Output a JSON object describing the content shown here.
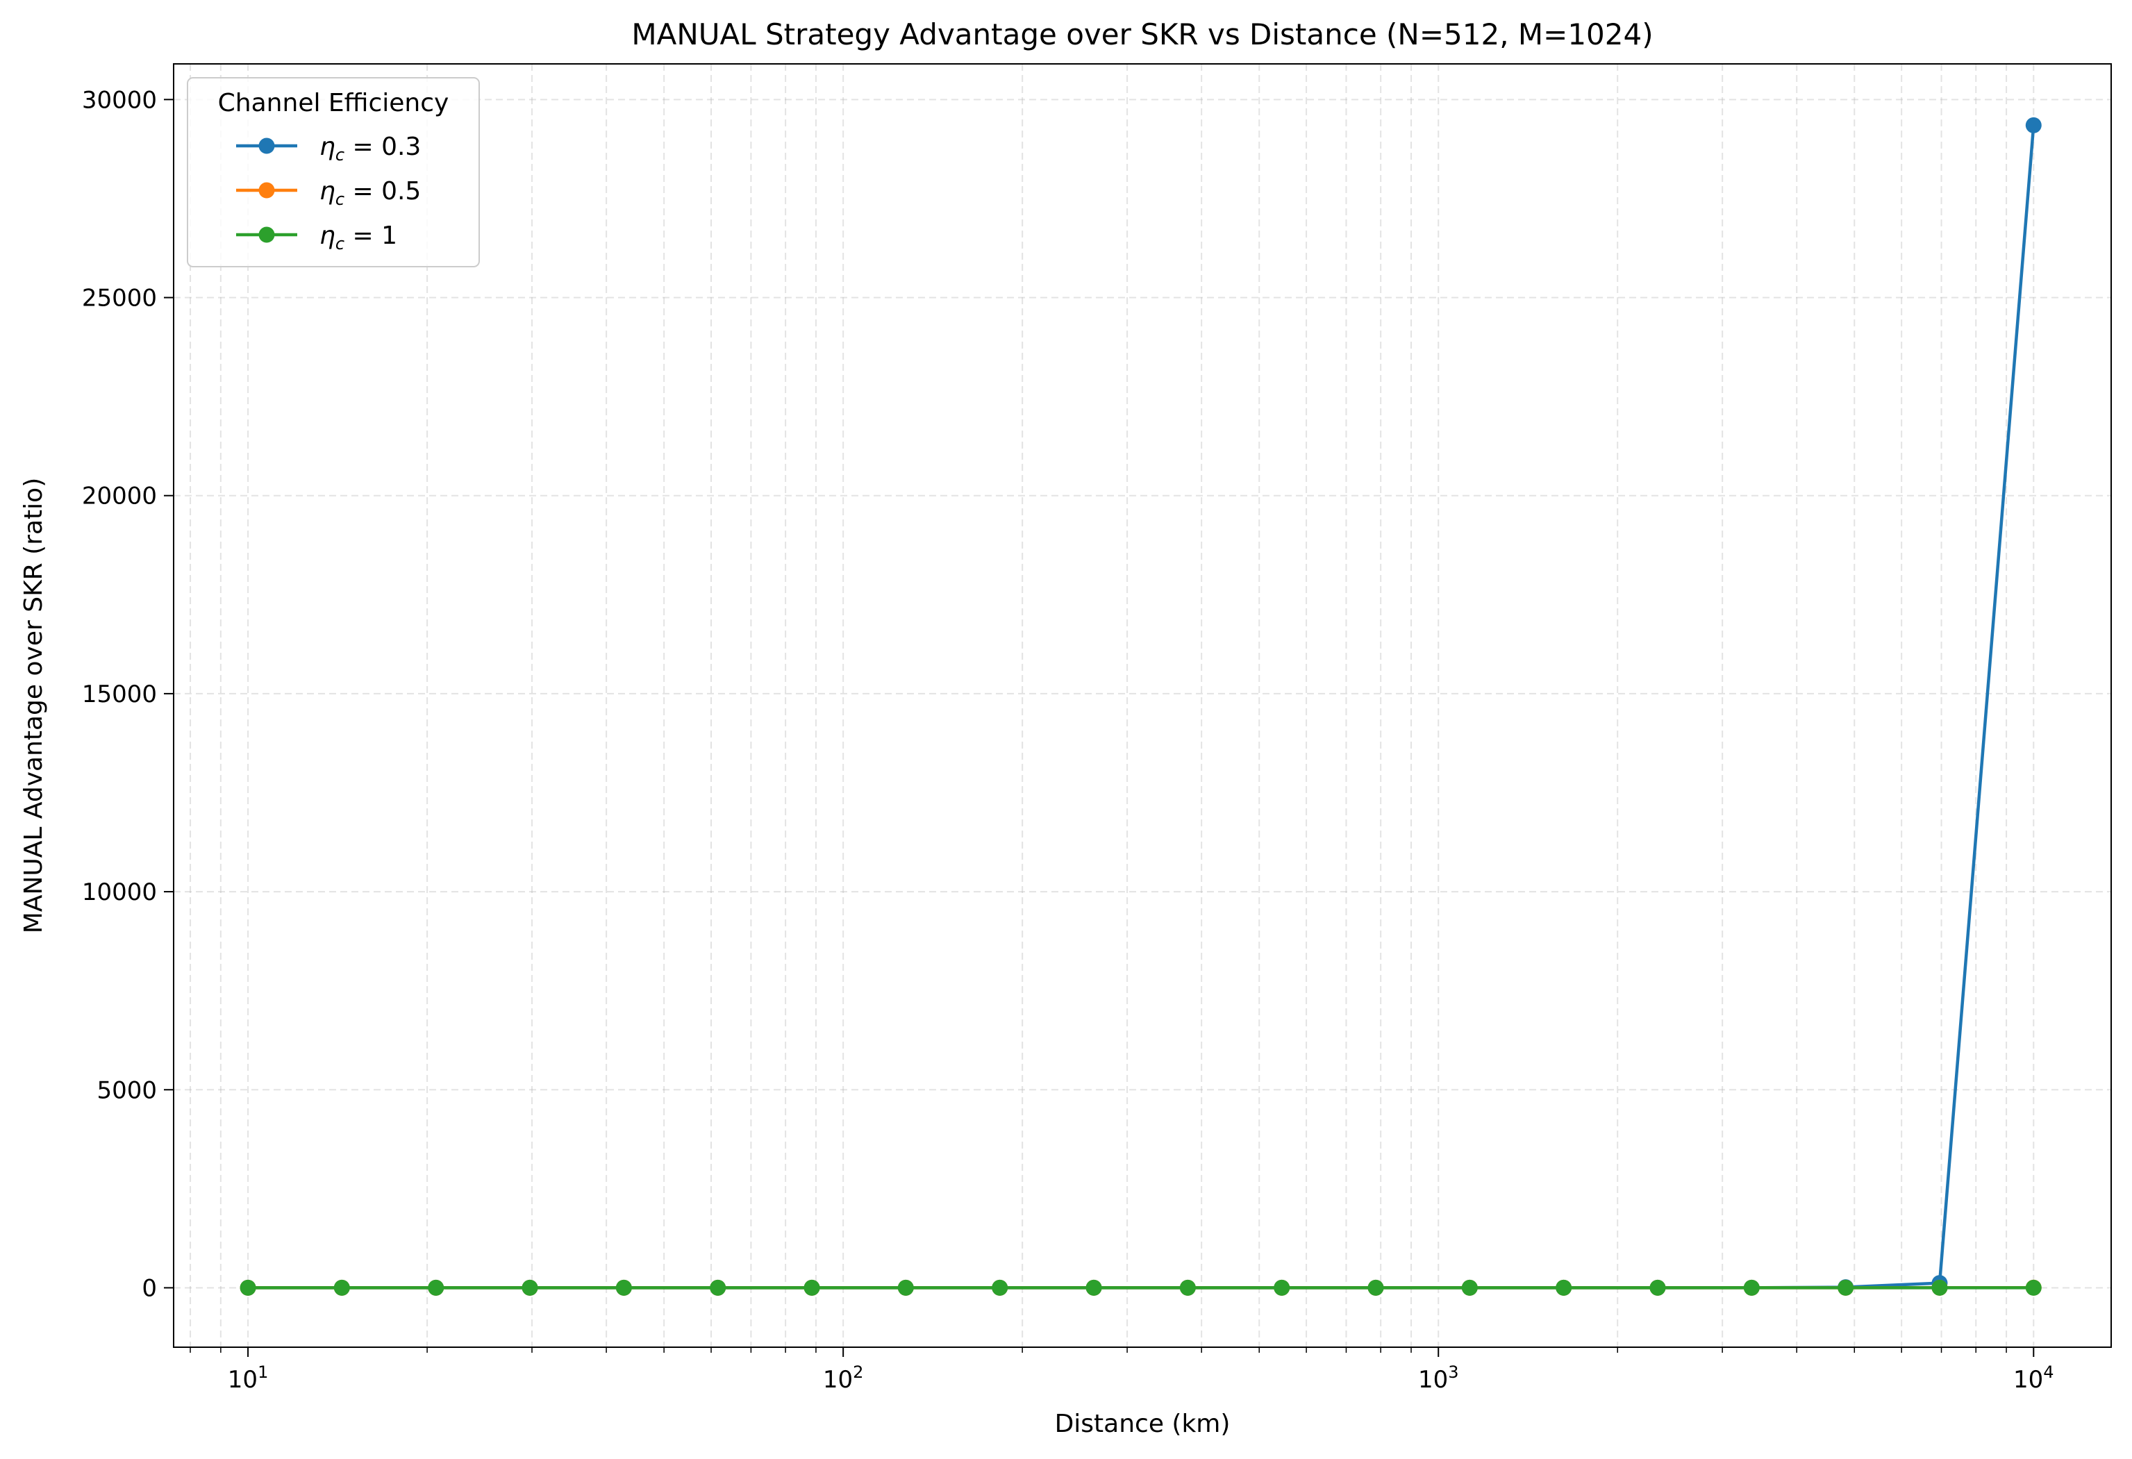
{
  "chart_data": {
    "type": "line",
    "title": "MANUAL Strategy Advantage over SKR vs Distance (N=512, M=1024)",
    "xlabel": "Distance (km)",
    "ylabel": "MANUAL Advantage over SKR (ratio)",
    "x_scale": "log",
    "xlim": [
      7.5,
      13500
    ],
    "ylim": [
      -1500,
      30900
    ],
    "x_ticks": [
      10,
      100,
      1000,
      10000
    ],
    "x_tick_labels": [
      {
        "base": "10",
        "exp": "1"
      },
      {
        "base": "10",
        "exp": "2"
      },
      {
        "base": "10",
        "exp": "3"
      },
      {
        "base": "10",
        "exp": "4"
      }
    ],
    "y_ticks": [
      0,
      5000,
      10000,
      15000,
      20000,
      25000,
      30000
    ],
    "y_tick_labels": [
      "0",
      "5000",
      "10000",
      "15000",
      "20000",
      "25000",
      "30000"
    ],
    "grid": true,
    "legend": {
      "title": "Channel Efficiency",
      "placement": "top-left"
    },
    "x": [
      10,
      14.38,
      20.69,
      29.76,
      42.81,
      61.58,
      88.59,
      127.4,
      183.3,
      263.7,
      379.3,
      545.6,
      784.8,
      1128.8,
      1623.8,
      2335.7,
      3359.8,
      4832.9,
      6951.9,
      10000
    ],
    "series": [
      {
        "name": "η_c = 0.3",
        "label_base": "η",
        "label_sub": "c",
        "label_value": "= 0.3",
        "color": "#1f77b4",
        "values": [
          1,
          1,
          1,
          1,
          1,
          1,
          1,
          1,
          1,
          1,
          1,
          1,
          1,
          1,
          1,
          1,
          2,
          15,
          120,
          29350
        ]
      },
      {
        "name": "η_c = 0.5",
        "label_base": "η",
        "label_sub": "c",
        "label_value": "= 0.5",
        "color": "#ff7f0e",
        "values": [
          1,
          1,
          1,
          1,
          1,
          1,
          1,
          1,
          1,
          1,
          1,
          1,
          1,
          1,
          1,
          1,
          1,
          1,
          2,
          3
        ]
      },
      {
        "name": "η_c = 1",
        "label_base": "η",
        "label_sub": "c",
        "label_value": "= 1",
        "color": "#2ca02c",
        "values": [
          1,
          1,
          1,
          1,
          1,
          1,
          1,
          1,
          1,
          1,
          1,
          1,
          1,
          1,
          1,
          1,
          1,
          1,
          1,
          1
        ]
      }
    ]
  }
}
